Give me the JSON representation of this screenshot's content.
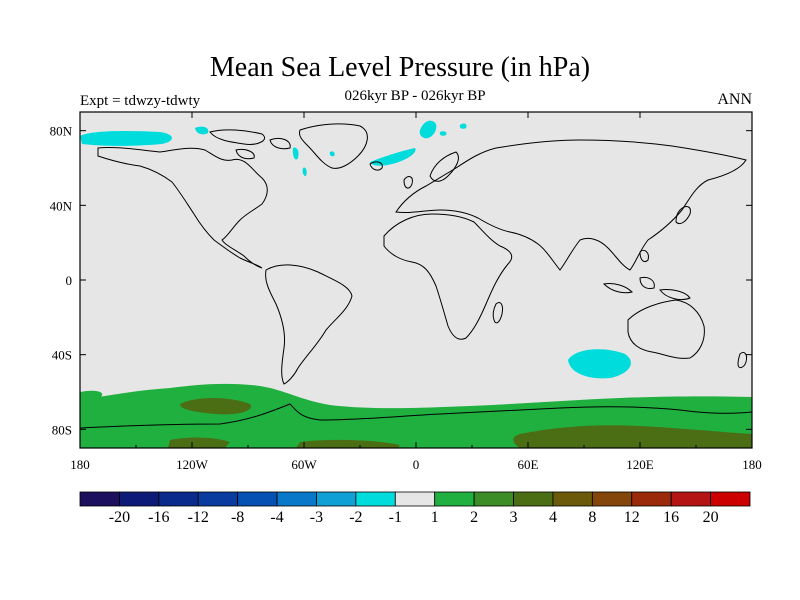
{
  "title": "Mean Sea Level Pressure (in hPa)",
  "subtitle": "026kyr BP - 026kyr BP",
  "left_label": "Expt = tdwzy-tdwty",
  "right_label": "ANN",
  "map": {
    "background_color": "#e6e6e6",
    "lon_ticks": [
      "180",
      "120W",
      "60W",
      "0",
      "60E",
      "120E",
      "180"
    ],
    "lat_ticks": [
      "80N",
      "40N",
      "0",
      "40S",
      "80S"
    ]
  },
  "colorbar": {
    "colors": [
      "#1c0f5e",
      "#0d1a78",
      "#0a2a8c",
      "#0a3c9f",
      "#0550b3",
      "#0a78c8",
      "#10a0d6",
      "#00dcdc",
      "#e6e6e6",
      "#20b040",
      "#3c8c28",
      "#4b6e14",
      "#6b5a0a",
      "#84460a",
      "#9a2a0a",
      "#b41414",
      "#cc0000"
    ],
    "labels": [
      "-20",
      "-16",
      "-12",
      "-8",
      "-4",
      "-3",
      "-2",
      "-1",
      "1",
      "2",
      "3",
      "4",
      "8",
      "12",
      "16",
      "20"
    ]
  },
  "legend_colors": {
    "cyan": "#00dcdc",
    "green": "#20b040",
    "dark_green": "#4b6e14"
  }
}
